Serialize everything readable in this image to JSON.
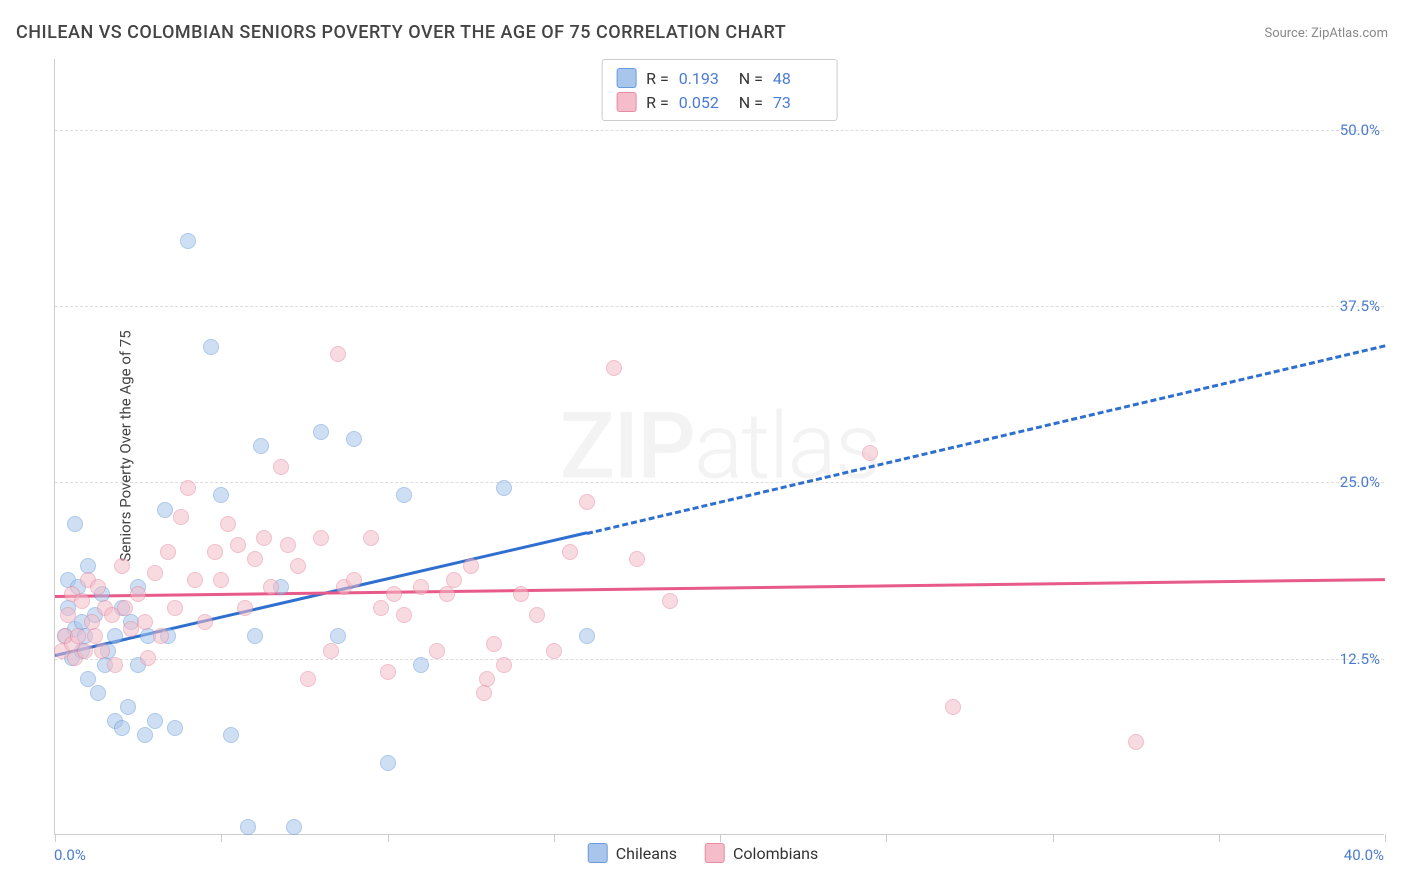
{
  "title": "CHILEAN VS COLOMBIAN SENIORS POVERTY OVER THE AGE OF 75 CORRELATION CHART",
  "source": "Source: ZipAtlas.com",
  "ylabel": "Seniors Poverty Over the Age of 75",
  "watermark_bold": "ZIP",
  "watermark_rest": "atlas",
  "chart": {
    "type": "scatter",
    "xlim": [
      0,
      40
    ],
    "ylim": [
      0,
      55
    ],
    "y_gridlines": [
      12.5,
      25,
      37.5,
      50
    ],
    "y_tick_labels": [
      "12.5%",
      "25.0%",
      "37.5%",
      "50.0%"
    ],
    "x_ticks": [
      0,
      5,
      10,
      15,
      20,
      25,
      30,
      35,
      40
    ],
    "x_label_min": "0.0%",
    "x_label_max": "40.0%",
    "background_color": "#ffffff",
    "grid_color": "#dddddd",
    "axis_color": "#cccccc",
    "tick_label_color": "#4a7bd4",
    "marker_radius": 8,
    "marker_opacity": 0.55,
    "series": [
      {
        "name": "Chileans",
        "fill": "#a8c5eb",
        "stroke": "#6a9bdc",
        "trend_color": "#2e6fcf",
        "R": "0.193",
        "N": "48",
        "trend": {
          "x1": 0,
          "y1": 12.8,
          "x2": 16,
          "y2": 21.5,
          "ext_x2": 40,
          "ext_y2": 34.8
        },
        "points": [
          [
            0.3,
            14.0
          ],
          [
            0.4,
            18.0
          ],
          [
            0.4,
            16.0
          ],
          [
            0.5,
            12.5
          ],
          [
            0.6,
            22.0
          ],
          [
            0.6,
            14.5
          ],
          [
            0.7,
            17.5
          ],
          [
            0.8,
            15.0
          ],
          [
            0.8,
            13.0
          ],
          [
            0.9,
            14.0
          ],
          [
            1.0,
            19.0
          ],
          [
            1.0,
            11.0
          ],
          [
            1.2,
            15.5
          ],
          [
            1.3,
            10.0
          ],
          [
            1.4,
            17.0
          ],
          [
            1.5,
            12.0
          ],
          [
            1.6,
            13.0
          ],
          [
            1.8,
            14.0
          ],
          [
            1.8,
            8.0
          ],
          [
            2.0,
            16.0
          ],
          [
            2.0,
            7.5
          ],
          [
            2.2,
            9.0
          ],
          [
            2.3,
            15.0
          ],
          [
            2.5,
            12.0
          ],
          [
            2.5,
            17.5
          ],
          [
            2.7,
            7.0
          ],
          [
            2.8,
            14.0
          ],
          [
            3.0,
            8.0
          ],
          [
            3.3,
            23.0
          ],
          [
            3.4,
            14.0
          ],
          [
            3.6,
            7.5
          ],
          [
            4.0,
            42.0
          ],
          [
            4.7,
            34.5
          ],
          [
            5.0,
            24.0
          ],
          [
            5.3,
            7.0
          ],
          [
            5.8,
            0.5
          ],
          [
            6.0,
            14.0
          ],
          [
            6.2,
            27.5
          ],
          [
            6.8,
            17.5
          ],
          [
            7.2,
            0.5
          ],
          [
            8.0,
            28.5
          ],
          [
            8.5,
            14.0
          ],
          [
            9.0,
            28.0
          ],
          [
            10.0,
            5.0
          ],
          [
            10.5,
            24.0
          ],
          [
            11.0,
            12.0
          ],
          [
            13.5,
            24.5
          ],
          [
            16.0,
            14.0
          ]
        ]
      },
      {
        "name": "Colombians",
        "fill": "#f4bdc9",
        "stroke": "#e68ba0",
        "trend_color": "#e75a8a",
        "R": "0.052",
        "N": "73",
        "trend": {
          "x1": 0,
          "y1": 17.0,
          "x2": 40,
          "y2": 18.2,
          "ext_x2": 40,
          "ext_y2": 18.2
        },
        "points": [
          [
            0.2,
            13.0
          ],
          [
            0.3,
            14.0
          ],
          [
            0.4,
            15.5
          ],
          [
            0.5,
            13.5
          ],
          [
            0.5,
            17.0
          ],
          [
            0.6,
            12.5
          ],
          [
            0.7,
            14.0
          ],
          [
            0.8,
            16.5
          ],
          [
            0.9,
            13.0
          ],
          [
            1.0,
            18.0
          ],
          [
            1.1,
            15.0
          ],
          [
            1.2,
            14.0
          ],
          [
            1.3,
            17.5
          ],
          [
            1.4,
            13.0
          ],
          [
            1.5,
            16.0
          ],
          [
            1.7,
            15.5
          ],
          [
            1.8,
            12.0
          ],
          [
            2.0,
            19.0
          ],
          [
            2.1,
            16.0
          ],
          [
            2.3,
            14.5
          ],
          [
            2.5,
            17.0
          ],
          [
            2.7,
            15.0
          ],
          [
            2.8,
            12.5
          ],
          [
            3.0,
            18.5
          ],
          [
            3.2,
            14.0
          ],
          [
            3.4,
            20.0
          ],
          [
            3.6,
            16.0
          ],
          [
            3.8,
            22.5
          ],
          [
            4.0,
            24.5
          ],
          [
            4.2,
            18.0
          ],
          [
            4.5,
            15.0
          ],
          [
            4.8,
            20.0
          ],
          [
            5.0,
            18.0
          ],
          [
            5.2,
            22.0
          ],
          [
            5.5,
            20.5
          ],
          [
            5.7,
            16.0
          ],
          [
            6.0,
            19.5
          ],
          [
            6.3,
            21.0
          ],
          [
            6.5,
            17.5
          ],
          [
            6.8,
            26.0
          ],
          [
            7.0,
            20.5
          ],
          [
            7.3,
            19.0
          ],
          [
            7.6,
            11.0
          ],
          [
            8.0,
            21.0
          ],
          [
            8.5,
            34.0
          ],
          [
            8.7,
            17.5
          ],
          [
            9.0,
            18.0
          ],
          [
            9.5,
            21.0
          ],
          [
            10.0,
            11.5
          ],
          [
            10.2,
            17.0
          ],
          [
            10.5,
            15.5
          ],
          [
            11.0,
            17.5
          ],
          [
            11.5,
            13.0
          ],
          [
            11.8,
            17.0
          ],
          [
            12.0,
            18.0
          ],
          [
            12.5,
            19.0
          ],
          [
            13.0,
            11.0
          ],
          [
            13.2,
            13.5
          ],
          [
            13.5,
            12.0
          ],
          [
            14.0,
            17.0
          ],
          [
            14.5,
            15.5
          ],
          [
            15.0,
            13.0
          ],
          [
            15.5,
            20.0
          ],
          [
            16.0,
            23.5
          ],
          [
            16.8,
            33.0
          ],
          [
            17.5,
            19.5
          ],
          [
            18.5,
            16.5
          ],
          [
            24.5,
            27.0
          ],
          [
            27.0,
            9.0
          ],
          [
            32.5,
            6.5
          ],
          [
            12.9,
            10.0
          ],
          [
            8.3,
            13.0
          ],
          [
            9.8,
            16.0
          ]
        ]
      }
    ]
  },
  "legend_top": {
    "r_label": "R =",
    "n_label": "N ="
  },
  "legend_bottom": [
    "Chileans",
    "Colombians"
  ]
}
